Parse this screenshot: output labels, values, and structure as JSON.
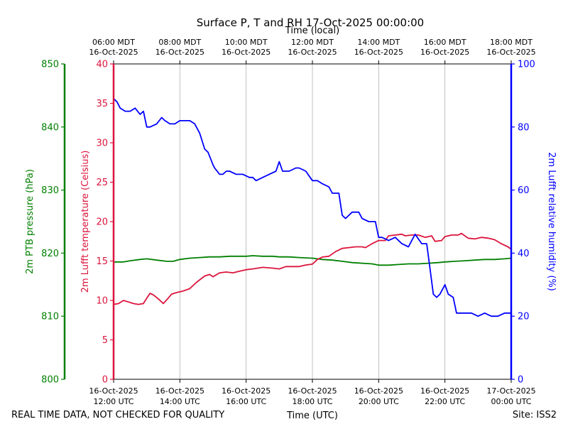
{
  "chart_data": {
    "type": "line",
    "title": "Surface P, T and RH 17-Oct-2025 00:00:00",
    "top_xlabel": "Time (local)",
    "top_ticks": [
      {
        "t": 0,
        "l1": "06:00 MDT",
        "l2": "16-Oct-2025"
      },
      {
        "t": 2,
        "l1": "08:00 MDT",
        "l2": "16-Oct-2025"
      },
      {
        "t": 4,
        "l1": "10:00 MDT",
        "l2": "16-Oct-2025"
      },
      {
        "t": 6,
        "l1": "12:00 MDT",
        "l2": "16-Oct-2025"
      },
      {
        "t": 8,
        "l1": "14:00 MDT",
        "l2": "16-Oct-2025"
      },
      {
        "t": 10,
        "l1": "16:00 MDT",
        "l2": "16-Oct-2025"
      },
      {
        "t": 12,
        "l1": "18:00 MDT",
        "l2": "16-Oct-2025"
      }
    ],
    "xlabel": "Time (UTC)",
    "x_ticks": [
      {
        "t": 0,
        "l1": "16-Oct-2025",
        "l2": "12:00 UTC"
      },
      {
        "t": 2,
        "l1": "16-Oct-2025",
        "l2": "14:00 UTC"
      },
      {
        "t": 4,
        "l1": "16-Oct-2025",
        "l2": "16:00 UTC"
      },
      {
        "t": 6,
        "l1": "16-Oct-2025",
        "l2": "18:00 UTC"
      },
      {
        "t": 8,
        "l1": "16-Oct-2025",
        "l2": "20:00 UTC"
      },
      {
        "t": 10,
        "l1": "16-Oct-2025",
        "l2": "22:00 UTC"
      },
      {
        "t": 12,
        "l1": "17-Oct-2025",
        "l2": "00:00 UTC"
      }
    ],
    "xlim": [
      0,
      12
    ],
    "x_units": "hours since 16-Oct-2025 12:00 UTC",
    "grid": "vertical",
    "axes": {
      "pressure": {
        "label": "2m PTB pressure (hPa)",
        "ylim": [
          800,
          850
        ],
        "ticks": [
          800,
          810,
          820,
          830,
          840,
          850
        ],
        "color": "#008000"
      },
      "temperature": {
        "label": "2m Lufft temperature (Celsius)",
        "ylim": [
          0,
          40
        ],
        "ticks": [
          0,
          5,
          10,
          15,
          20,
          25,
          30,
          35,
          40
        ],
        "color": "#dc143c"
      },
      "humidity": {
        "label": "2m Lufft relative humidity (%)",
        "ylim": [
          0,
          100
        ],
        "ticks": [
          0,
          20,
          40,
          60,
          80,
          100
        ],
        "color": "#0000ff"
      }
    },
    "series": [
      {
        "axis": "pressure",
        "color": "#008000",
        "x": [
          0,
          0.3,
          0.5,
          0.8,
          1.0,
          1.3,
          1.6,
          1.8,
          2.0,
          2.3,
          2.6,
          2.9,
          3.2,
          3.5,
          3.8,
          4.0,
          4.2,
          4.5,
          4.8,
          5.0,
          5.3,
          5.6,
          6.0,
          6.3,
          6.6,
          6.9,
          7.2,
          7.5,
          7.8,
          8.0,
          8.3,
          8.6,
          8.9,
          9.2,
          9.5,
          9.8,
          10.0,
          10.3,
          10.6,
          10.9,
          11.2,
          11.5,
          11.8,
          12.0
        ],
        "y": [
          818.6,
          818.6,
          818.8,
          819.0,
          819.1,
          818.9,
          818.7,
          818.7,
          819.0,
          819.2,
          819.3,
          819.4,
          819.4,
          819.5,
          819.5,
          819.5,
          819.6,
          819.5,
          819.5,
          819.4,
          819.4,
          819.3,
          819.2,
          819.0,
          818.9,
          818.7,
          818.5,
          818.4,
          818.3,
          818.1,
          818.1,
          818.2,
          818.3,
          818.3,
          818.4,
          818.5,
          818.6,
          818.7,
          818.8,
          818.9,
          819.0,
          819.0,
          819.1,
          819.2
        ]
      },
      {
        "axis": "temperature",
        "color": "#dc143c",
        "x": [
          0,
          0.15,
          0.3,
          0.45,
          0.6,
          0.75,
          0.9,
          1.0,
          1.1,
          1.2,
          1.35,
          1.5,
          1.65,
          1.75,
          1.9,
          2.1,
          2.3,
          2.5,
          2.75,
          2.9,
          3.0,
          3.2,
          3.4,
          3.6,
          3.8,
          4.0,
          4.2,
          4.5,
          4.8,
          5.0,
          5.2,
          5.4,
          5.6,
          5.8,
          6.0,
          6.15,
          6.3,
          6.5,
          6.7,
          6.9,
          7.1,
          7.3,
          7.5,
          7.6,
          7.8,
          8.0,
          8.2,
          8.3,
          8.5,
          8.7,
          8.8,
          9.0,
          9.2,
          9.4,
          9.6,
          9.7,
          9.9,
          10.0,
          10.2,
          10.4,
          10.5,
          10.7,
          10.9,
          11.1,
          11.3,
          11.5,
          11.7,
          11.9,
          12.0
        ],
        "y": [
          9.5,
          9.6,
          10.0,
          9.8,
          9.6,
          9.5,
          9.6,
          10.3,
          10.9,
          10.7,
          10.2,
          9.6,
          10.3,
          10.8,
          11.0,
          11.2,
          11.5,
          12.3,
          13.1,
          13.3,
          13.0,
          13.5,
          13.6,
          13.5,
          13.7,
          13.9,
          14.0,
          14.2,
          14.1,
          14.0,
          14.3,
          14.3,
          14.3,
          14.5,
          14.6,
          15.2,
          15.5,
          15.6,
          16.2,
          16.6,
          16.7,
          16.8,
          16.8,
          16.7,
          17.2,
          17.6,
          17.6,
          18.2,
          18.3,
          18.4,
          18.2,
          18.3,
          18.3,
          18.0,
          18.2,
          17.5,
          17.6,
          18.1,
          18.3,
          18.3,
          18.5,
          17.9,
          17.8,
          18.0,
          17.9,
          17.7,
          17.2,
          16.8,
          16.5
        ]
      },
      {
        "axis": "humidity",
        "color": "#0000ff",
        "x": [
          0,
          0.1,
          0.2,
          0.35,
          0.5,
          0.65,
          0.8,
          0.9,
          1.0,
          1.1,
          1.3,
          1.45,
          1.55,
          1.7,
          1.85,
          2.0,
          2.15,
          2.3,
          2.45,
          2.6,
          2.75,
          2.85,
          3.0,
          3.05,
          3.2,
          3.3,
          3.4,
          3.5,
          3.7,
          3.9,
          4.1,
          4.2,
          4.3,
          4.5,
          4.7,
          4.9,
          5.0,
          5.1,
          5.3,
          5.5,
          5.6,
          5.8,
          6.0,
          6.15,
          6.3,
          6.5,
          6.6,
          6.8,
          6.9,
          7.0,
          7.2,
          7.4,
          7.5,
          7.7,
          7.9,
          8.0,
          8.1,
          8.3,
          8.5,
          8.7,
          8.9,
          9.0,
          9.1,
          9.3,
          9.45,
          9.55,
          9.65,
          9.75,
          9.85,
          10.0,
          10.1,
          10.25,
          10.35,
          10.45,
          10.6,
          10.8,
          11.0,
          11.2,
          11.4,
          11.6,
          11.8,
          12.0
        ],
        "y": [
          89,
          88,
          86,
          85,
          85,
          86,
          84,
          85,
          80,
          80,
          81,
          83,
          82,
          81,
          81,
          82,
          82,
          82,
          81,
          78,
          73,
          72,
          68,
          67,
          65,
          65,
          66,
          66,
          65,
          65,
          64,
          64,
          63,
          64,
          65,
          66,
          69,
          66,
          66,
          67,
          67,
          66,
          63,
          63,
          62,
          61,
          59,
          59,
          52,
          51,
          53,
          53,
          51,
          50,
          50,
          45,
          45,
          44,
          45,
          43,
          42,
          44,
          46,
          43,
          43,
          35,
          27,
          26,
          27,
          30,
          27,
          26,
          21,
          21,
          21,
          21,
          20,
          21,
          20,
          20,
          21,
          21
        ]
      }
    ]
  },
  "footer": {
    "disclaimer": "REAL TIME DATA, NOT CHECKED FOR QUALITY",
    "site": "Site: ISS2"
  }
}
